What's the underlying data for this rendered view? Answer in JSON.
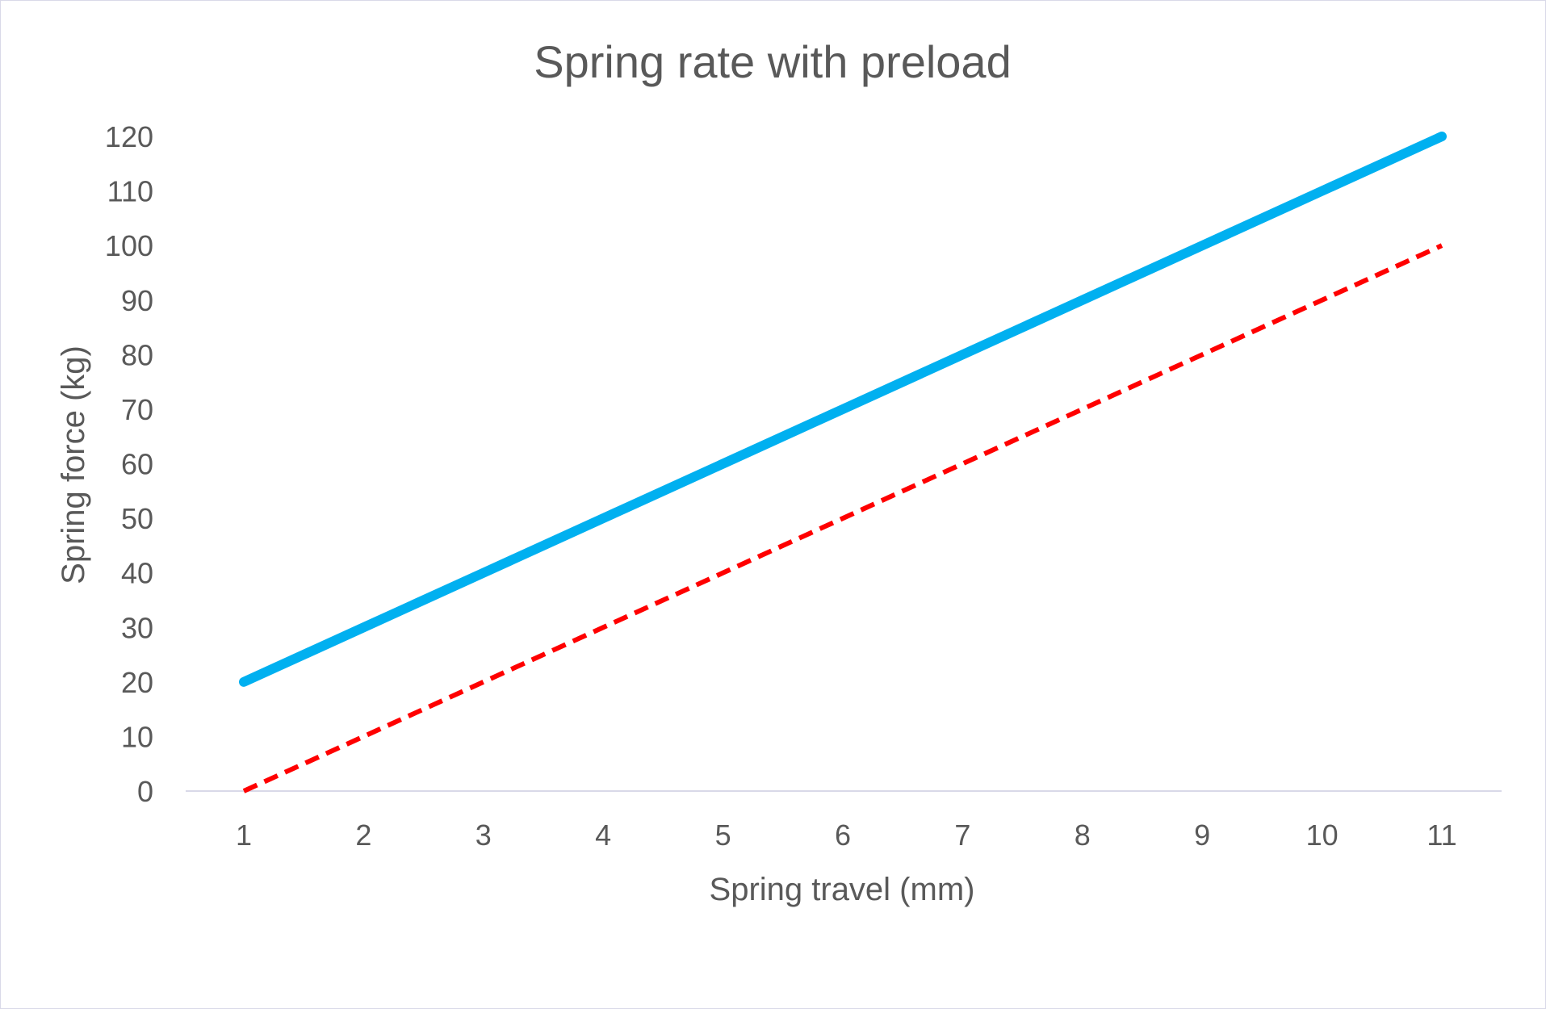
{
  "chart_data": {
    "type": "line",
    "title": "Spring rate with preload",
    "xlabel": "Spring travel (mm)",
    "ylabel": "Spring force (kg)",
    "categories": [
      "1",
      "2",
      "3",
      "4",
      "5",
      "6",
      "7",
      "8",
      "9",
      "10",
      "11"
    ],
    "y_ticks": [
      "0",
      "10",
      "20",
      "30",
      "40",
      "50",
      "60",
      "70",
      "80",
      "90",
      "100",
      "110",
      "120"
    ],
    "ylim": [
      0,
      120
    ],
    "grid": false,
    "legend": "none",
    "series": [
      {
        "values": [
          20,
          30,
          40,
          50,
          60,
          70,
          80,
          90,
          100,
          110,
          120
        ],
        "color": "#00b0f0",
        "style": "solid"
      },
      {
        "values": [
          0,
          10,
          20,
          30,
          40,
          50,
          60,
          70,
          80,
          90,
          100
        ],
        "color": "#ff0000",
        "style": "dashed"
      }
    ]
  }
}
